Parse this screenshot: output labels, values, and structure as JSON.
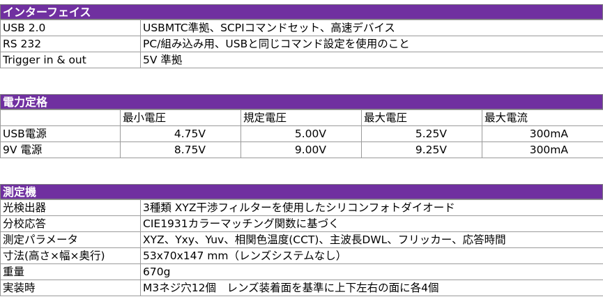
{
  "interface": {
    "title": "インターフェイス",
    "rows": [
      {
        "label": "USB 2.0",
        "value": "USBMTC準拠、SCPIコマンドセット、高速デバイス"
      },
      {
        "label": "RS 232",
        "value": "PC/組み込み用、USBと同じコマンド設定を使用のこと"
      },
      {
        "label": "Trigger in & out",
        "value": "5V 準拠"
      }
    ]
  },
  "power": {
    "title": "電力定格",
    "headers": [
      "",
      "最小電圧",
      "規定電圧",
      "最大電圧",
      "最大電流"
    ],
    "rows": [
      {
        "label": "USB電源",
        "cells": [
          "4.75V",
          "5.00V",
          "5.25V",
          "300mA"
        ]
      },
      {
        "label": "9V 電源",
        "cells": [
          "8.75V",
          "9.00V",
          "9.25V",
          "300mA"
        ]
      }
    ]
  },
  "measurement": {
    "title": "測定機",
    "rows": [
      {
        "label": "光検出器",
        "value": "3種類 XYZ干渉フィルターを使用したシリコンフォトダイオード"
      },
      {
        "label": "分校応答",
        "value": "CIE1931カラーマッチング関数に基づく"
      },
      {
        "label": "測定パラメータ",
        "value": "XYZ、Yxy、Yuv、相関色温度(CCT)、主波長DWL、フリッカー、応答時間"
      },
      {
        "label": "寸法(高さ×幅×奥行)",
        "value": "53x70x147 mm（レンズシステムなし）"
      },
      {
        "label": "重量",
        "value": "670g"
      },
      {
        "label": "実装時",
        "value": "M3ネジ穴12個　レンズ装着面を基準に上下左右の面に各4個"
      }
    ]
  },
  "colors": {
    "header_bg": "#7030a0",
    "header_text": "#ffffff",
    "grid": "#9a9a9a"
  }
}
